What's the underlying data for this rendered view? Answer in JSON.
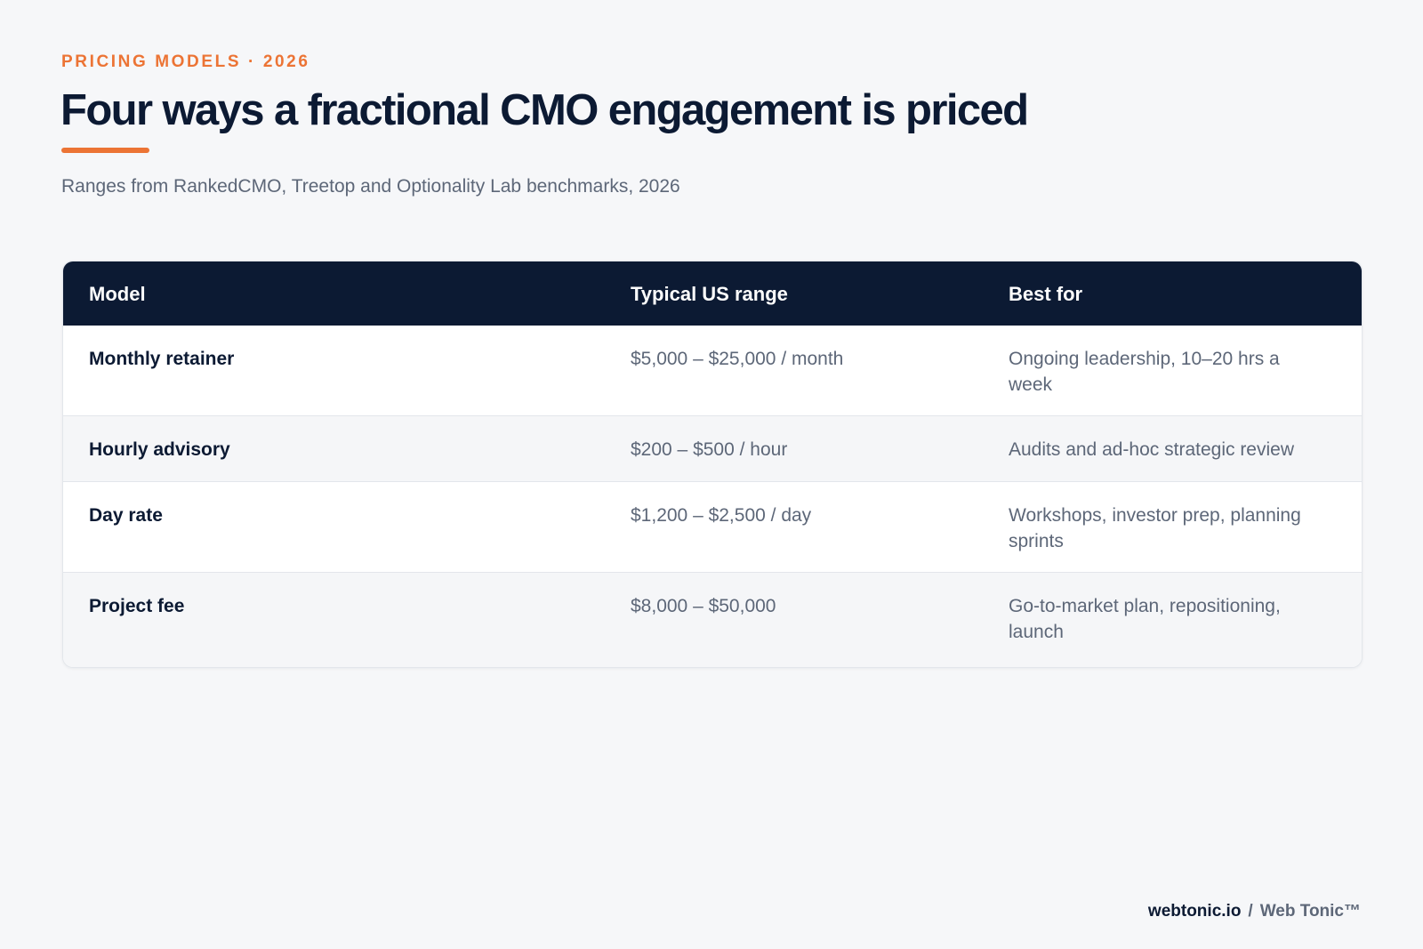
{
  "header": {
    "eyebrow": "PRICING MODELS · 2026",
    "title": "Four ways a fractional CMO engagement is priced",
    "subtitle": "Ranges from RankedCMO, Treetop and Optionality Lab benchmarks, 2026"
  },
  "table": {
    "columns": [
      "Model",
      "Typical US range",
      "Best for"
    ],
    "rows": [
      {
        "model": "Monthly retainer",
        "range": "$5,000 – $25,000 / month",
        "best_for": "Ongoing leadership, 10–20 hrs a week"
      },
      {
        "model": "Hourly advisory",
        "range": "$200 – $500 / hour",
        "best_for": "Audits and ad-hoc strategic review"
      },
      {
        "model": "Day rate",
        "range": "$1,200 – $2,500 / day",
        "best_for": "Workshops, investor prep, planning sprints"
      },
      {
        "model": "Project fee",
        "range": "$8,000 – $50,000",
        "best_for": "Go-to-market plan, repositioning, launch"
      }
    ]
  },
  "footer": {
    "domain": "webtonic.io",
    "separator": "/",
    "brand": "Web Tonic™"
  },
  "colors": {
    "accent": "#ec7435",
    "navy": "#0c1a33",
    "muted": "#5d6778",
    "background": "#f6f7f9"
  }
}
